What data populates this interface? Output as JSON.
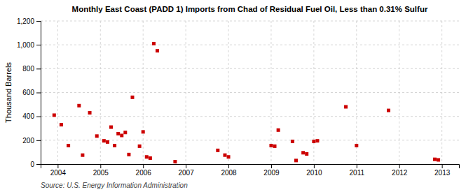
{
  "chart_data": {
    "type": "scatter",
    "title": "Monthly East Coast (PADD 1) Imports from Chad of Residual Fuel Oil, Less than 0.31% Sulfur",
    "ylabel": "Thousand Barrels",
    "source": "Source: U.S. Energy Information Administration",
    "color": "#cc0000",
    "marker": "square",
    "grid": true,
    "xlim": [
      2003.6,
      2013.4
    ],
    "xticks": [
      2004,
      2005,
      2006,
      2007,
      2008,
      2009,
      2010,
      2011,
      2012,
      2013
    ],
    "ylim": [
      0,
      1200
    ],
    "yticks": [
      0,
      200,
      400,
      600,
      800,
      {
        "value": 1000,
        "label": "1,000"
      },
      {
        "value": 1200,
        "label": "1,200"
      }
    ],
    "x": [
      2003.917,
      2004.083,
      2004.25,
      2004.5,
      2004.583,
      2004.75,
      2004.917,
      2005.083,
      2005.167,
      2005.25,
      2005.333,
      2005.417,
      2005.5,
      2005.583,
      2005.667,
      2005.75,
      2005.917,
      2006.0,
      2006.083,
      2006.167,
      2006.25,
      2006.333,
      2006.75,
      2007.75,
      2007.917,
      2008.0,
      2009.0,
      2009.083,
      2009.167,
      2009.5,
      2009.583,
      2009.75,
      2009.833,
      2010.0,
      2010.083,
      2010.75,
      2011.0,
      2011.75,
      2012.833,
      2012.917
    ],
    "values": [
      410,
      330,
      155,
      490,
      75,
      430,
      235,
      195,
      185,
      310,
      155,
      255,
      240,
      265,
      80,
      560,
      150,
      270,
      60,
      50,
      1010,
      950,
      20,
      115,
      75,
      60,
      155,
      150,
      285,
      190,
      30,
      95,
      85,
      190,
      195,
      480,
      155,
      450,
      40,
      35
    ]
  }
}
